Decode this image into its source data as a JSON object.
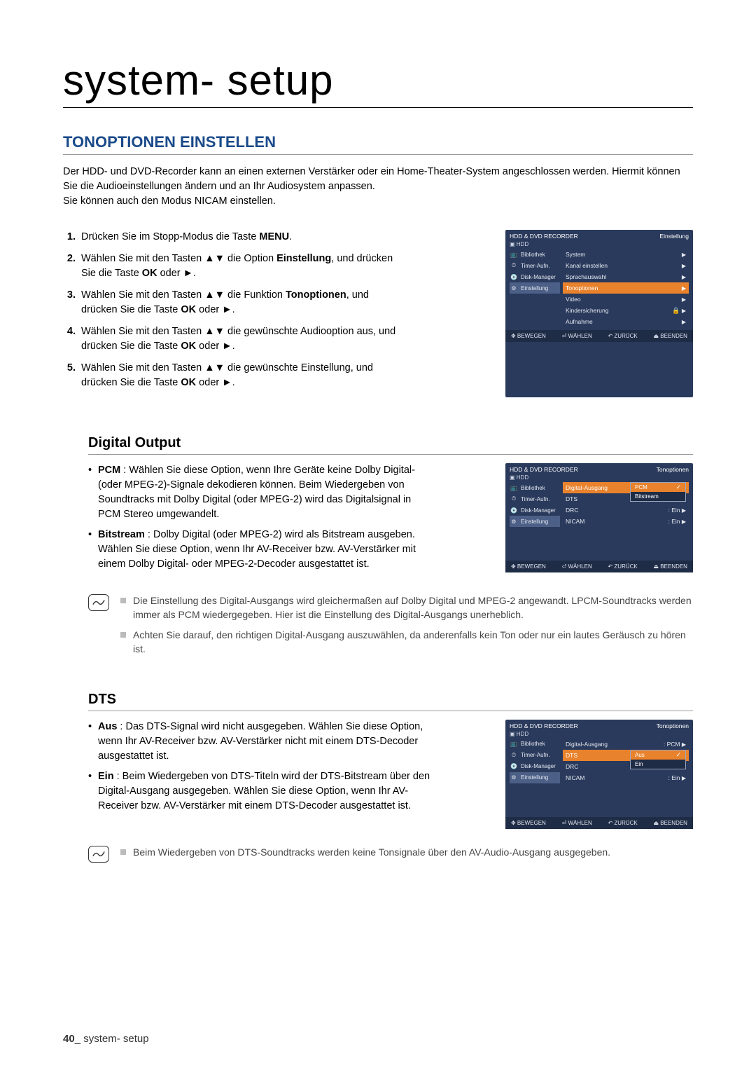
{
  "page": {
    "title": "system- setup",
    "section_title": "TONOPTIONEN EINSTELLEN",
    "intro": "Der HDD- und DVD-Recorder kann an einen externen Verstärker oder ein Home-Theater-System angeschlossen werden. Hiermit können Sie die Audioeinstellungen ändern und an Ihr Audiosystem anpassen.\nSie können auch den Modus NICAM einstellen.",
    "footer_num": "40",
    "footer_label": "_ system- setup"
  },
  "steps": [
    {
      "n": "1.",
      "t": "Drücken Sie im Stopp-Modus die Taste ",
      "b": "MENU",
      "t2": "."
    },
    {
      "n": "2.",
      "t": "Wählen Sie mit den Tasten ▲▼ die Option ",
      "b": "Einstellung",
      "t2": ", und drücken Sie die Taste ",
      "b2": "OK",
      "t3": " oder ►."
    },
    {
      "n": "3.",
      "t": "Wählen Sie mit den Tasten ▲▼ die Funktion ",
      "b": "Tonoptionen",
      "t2": ", und drücken Sie die Taste ",
      "b2": "OK",
      "t3": " oder ►."
    },
    {
      "n": "4.",
      "t": "Wählen Sie mit den Tasten ▲▼ die gewünschte Audiooption aus, und drücken Sie die Taste ",
      "b": "OK",
      "t2": " oder ►."
    },
    {
      "n": "5.",
      "t": "Wählen Sie mit den Tasten ▲▼ die gewünschte Einstellung, und drücken Sie die Taste ",
      "b": "OK",
      "t2": " oder ►."
    }
  ],
  "digital": {
    "title": "Digital Output",
    "bullets": [
      {
        "b": "PCM",
        "t": " : Wählen Sie diese Option, wenn Ihre Geräte keine Dolby Digital- (oder MPEG-2)-Signale dekodieren können. Beim Wiedergeben von Soundtracks mit Dolby Digital (oder MPEG-2) wird das Digitalsignal in PCM Stereo umgewandelt."
      },
      {
        "b": "Bitstream",
        "t": " : Dolby Digital (oder MPEG-2) wird als Bitstream ausgeben. Wählen Sie diese Option, wenn Ihr AV-Receiver bzw. AV-Verstärker mit einem Dolby Digital- oder MPEG-2-Decoder ausgestattet ist."
      }
    ],
    "notes": [
      "Die Einstellung des Digital-Ausgangs wird gleichermaßen auf Dolby Digital und MPEG-2 angewandt. LPCM-Soundtracks werden immer als PCM wiedergegeben. Hier ist die Einstellung des Digital-Ausgangs unerheblich.",
      "Achten Sie darauf, den richtigen Digital-Ausgang auszuwählen, da anderenfalls kein Ton oder nur ein lautes Geräusch zu hören ist."
    ]
  },
  "dts": {
    "title": "DTS",
    "bullets": [
      {
        "b": "Aus",
        "t": " : Das DTS-Signal wird nicht ausgegeben. Wählen Sie diese Option, wenn Ihr AV-Receiver bzw. AV-Verstärker nicht mit einem DTS-Decoder ausgestattet ist."
      },
      {
        "b": "Ein",
        "t": " : Beim Wiedergeben von DTS-Titeln wird der DTS-Bitstream über den Digital-Ausgang ausgegeben. Wählen Sie diese Option, wenn Ihr AV-Receiver bzw. AV-Verstärker mit einem DTS-Decoder ausgestattet ist."
      }
    ],
    "notes": [
      "Beim Wiedergeben von DTS-Soundtracks werden keine Tonsignale über den AV-Audio-Ausgang ausgegeben."
    ]
  },
  "osd": {
    "device": "HDD & DVD RECORDER",
    "drive": "HDD",
    "side": [
      "Bibliothek",
      "Timer-Aufn.",
      "Disk-Manager",
      "Einstellung"
    ],
    "foot": {
      "move": "BEWEGEN",
      "select": "WÄHLEN",
      "back": "ZURÜCK",
      "exit": "BEENDEN"
    }
  },
  "osd1": {
    "title": "Einstellung",
    "rows": [
      "System",
      "Kanal einstellen",
      "Sprachauswahl",
      "Tonoptionen",
      "Video",
      "Kindersicherung",
      "Aufnahme"
    ],
    "selected": 3
  },
  "osd2": {
    "title": "Tonoptionen",
    "rows": [
      {
        "l": "Digital-Ausgang",
        "r": ""
      },
      {
        "l": "DTS",
        "r": ""
      },
      {
        "l": "DRC",
        "r": ": Ein"
      },
      {
        "l": "NICAM",
        "r": ": Ein"
      }
    ],
    "popup": [
      "PCM",
      "Bitstream"
    ],
    "popup_sel": 0
  },
  "osd3": {
    "title": "Tonoptionen",
    "rows": [
      {
        "l": "Digital-Ausgang",
        "r": ": PCM"
      },
      {
        "l": "DTS",
        "r": ""
      },
      {
        "l": "DRC",
        "r": ""
      },
      {
        "l": "NICAM",
        "r": ": Ein"
      }
    ],
    "popup": [
      "Aus",
      "Ein"
    ],
    "popup_sel": 0
  }
}
